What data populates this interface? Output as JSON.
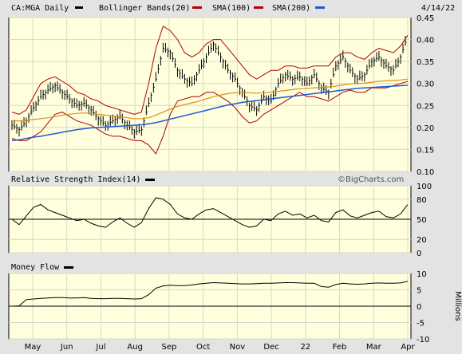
{
  "colors": {
    "panel_bg": "#ffffdd",
    "frame_bg": "#e3e3e3",
    "price_bars": "#000000",
    "bollinger": "#b00000",
    "sma100": "#d9901b",
    "sma200": "#1f58d6",
    "rsi_line": "#000000",
    "mf_line": "#000000",
    "grid": "#d8d8c8"
  },
  "header": {
    "symbol": "CA:MGA Daily",
    "legend_bollinger": "Bollinger Bands(20)",
    "legend_sma100": "SMA(100)",
    "legend_sma200": "SMA(200)",
    "date": "4/14/22",
    "watermark": "©BigCharts.com"
  },
  "rsi_panel": {
    "title": "Relative Strength Index(14)"
  },
  "mf_panel": {
    "title": "Money Flow",
    "unit_label": "Millions"
  },
  "chart_data": [
    {
      "type": "ohlc",
      "title": "CA:MGA Daily",
      "ylim": [
        0.1,
        0.45
      ],
      "y_ticks": [
        "0.45",
        "0.40",
        "0.35",
        "0.30",
        "0.25",
        "0.20",
        "0.15",
        "0.10"
      ],
      "x_ticks": [
        "May",
        "Jun",
        "Jul",
        "Aug",
        "Sep",
        "Oct",
        "Nov",
        "Dec",
        "22",
        "Feb",
        "Mar",
        "Apr"
      ],
      "close_weekly": [
        0.205,
        0.195,
        0.215,
        0.245,
        0.27,
        0.285,
        0.295,
        0.28,
        0.265,
        0.25,
        0.255,
        0.24,
        0.22,
        0.205,
        0.215,
        0.225,
        0.205,
        0.19,
        0.195,
        0.255,
        0.31,
        0.38,
        0.37,
        0.33,
        0.31,
        0.3,
        0.33,
        0.36,
        0.39,
        0.36,
        0.33,
        0.31,
        0.28,
        0.25,
        0.24,
        0.27,
        0.26,
        0.3,
        0.32,
        0.31,
        0.315,
        0.3,
        0.32,
        0.29,
        0.28,
        0.34,
        0.36,
        0.33,
        0.31,
        0.32,
        0.35,
        0.36,
        0.34,
        0.33,
        0.36,
        0.41
      ],
      "sma100_weekly": [
        0.215,
        0.215,
        0.216,
        0.218,
        0.22,
        0.222,
        0.225,
        0.228,
        0.23,
        0.232,
        0.233,
        0.232,
        0.23,
        0.228,
        0.226,
        0.224,
        0.222,
        0.22,
        0.22,
        0.222,
        0.228,
        0.235,
        0.242,
        0.248,
        0.252,
        0.256,
        0.26,
        0.265,
        0.27,
        0.274,
        0.277,
        0.279,
        0.28,
        0.279,
        0.278,
        0.279,
        0.28,
        0.282,
        0.284,
        0.286,
        0.288,
        0.289,
        0.29,
        0.291,
        0.292,
        0.294,
        0.297,
        0.299,
        0.3,
        0.301,
        0.303,
        0.305,
        0.306,
        0.307,
        0.308,
        0.31
      ],
      "sma200_weekly": [
        0.17,
        0.172,
        0.175,
        0.178,
        0.18,
        0.183,
        0.186,
        0.189,
        0.192,
        0.195,
        0.197,
        0.199,
        0.2,
        0.201,
        0.202,
        0.203,
        0.204,
        0.205,
        0.206,
        0.208,
        0.211,
        0.215,
        0.219,
        0.223,
        0.227,
        0.231,
        0.235,
        0.239,
        0.243,
        0.247,
        0.251,
        0.254,
        0.257,
        0.259,
        0.261,
        0.263,
        0.265,
        0.267,
        0.269,
        0.271,
        0.273,
        0.275,
        0.277,
        0.279,
        0.281,
        0.283,
        0.285,
        0.287,
        0.289,
        0.29,
        0.291,
        0.292,
        0.293,
        0.294,
        0.295,
        0.296
      ],
      "bb_upper_weekly": [
        0.235,
        0.23,
        0.24,
        0.27,
        0.3,
        0.31,
        0.315,
        0.305,
        0.295,
        0.28,
        0.275,
        0.265,
        0.26,
        0.25,
        0.245,
        0.24,
        0.235,
        0.23,
        0.235,
        0.3,
        0.38,
        0.43,
        0.42,
        0.4,
        0.37,
        0.36,
        0.37,
        0.39,
        0.4,
        0.4,
        0.38,
        0.36,
        0.34,
        0.32,
        0.31,
        0.32,
        0.33,
        0.33,
        0.34,
        0.34,
        0.335,
        0.335,
        0.34,
        0.34,
        0.34,
        0.36,
        0.37,
        0.37,
        0.36,
        0.355,
        0.37,
        0.38,
        0.375,
        0.37,
        0.385,
        0.41
      ],
      "bb_lower_weekly": [
        0.175,
        0.17,
        0.17,
        0.18,
        0.19,
        0.21,
        0.23,
        0.235,
        0.225,
        0.215,
        0.21,
        0.205,
        0.195,
        0.185,
        0.18,
        0.18,
        0.175,
        0.17,
        0.17,
        0.16,
        0.14,
        0.18,
        0.23,
        0.26,
        0.265,
        0.27,
        0.27,
        0.28,
        0.28,
        0.27,
        0.26,
        0.245,
        0.225,
        0.21,
        0.215,
        0.23,
        0.24,
        0.25,
        0.26,
        0.27,
        0.28,
        0.27,
        0.27,
        0.265,
        0.26,
        0.27,
        0.28,
        0.285,
        0.28,
        0.28,
        0.29,
        0.29,
        0.29,
        0.295,
        0.3,
        0.305
      ]
    },
    {
      "type": "line",
      "title": "Relative Strength Index(14)",
      "ylim": [
        0,
        100
      ],
      "y_ticks": [
        "100",
        "80",
        "50",
        "20",
        "0"
      ],
      "reference_line": 50,
      "values_weekly": [
        50,
        42,
        55,
        68,
        72,
        64,
        60,
        56,
        52,
        48,
        50,
        44,
        40,
        38,
        46,
        52,
        44,
        38,
        45,
        66,
        82,
        80,
        72,
        58,
        52,
        50,
        58,
        64,
        66,
        60,
        54,
        48,
        42,
        38,
        40,
        50,
        48,
        58,
        62,
        56,
        58,
        52,
        56,
        48,
        46,
        60,
        64,
        55,
        52,
        56,
        60,
        62,
        54,
        52,
        58,
        72
      ]
    },
    {
      "type": "line",
      "title": "Money Flow",
      "ylabel": "Millions",
      "ylim": [
        -10,
        10
      ],
      "y_ticks": [
        "10",
        "5",
        "0",
        "-5",
        "-10"
      ],
      "reference_line": 0,
      "values_weekly": [
        0.0,
        0.1,
        2.0,
        2.2,
        2.4,
        2.5,
        2.6,
        2.6,
        2.5,
        2.5,
        2.6,
        2.4,
        2.3,
        2.3,
        2.4,
        2.4,
        2.3,
        2.2,
        2.3,
        3.5,
        5.5,
        6.2,
        6.4,
        6.3,
        6.3,
        6.5,
        6.8,
        7.0,
        7.2,
        7.1,
        7.0,
        6.9,
        6.8,
        6.8,
        6.9,
        7.0,
        7.0,
        7.1,
        7.2,
        7.2,
        7.1,
        7.0,
        7.0,
        6.0,
        5.8,
        6.6,
        7.0,
        6.8,
        6.7,
        6.8,
        7.0,
        7.1,
        7.0,
        7.0,
        7.1,
        7.6
      ]
    }
  ]
}
